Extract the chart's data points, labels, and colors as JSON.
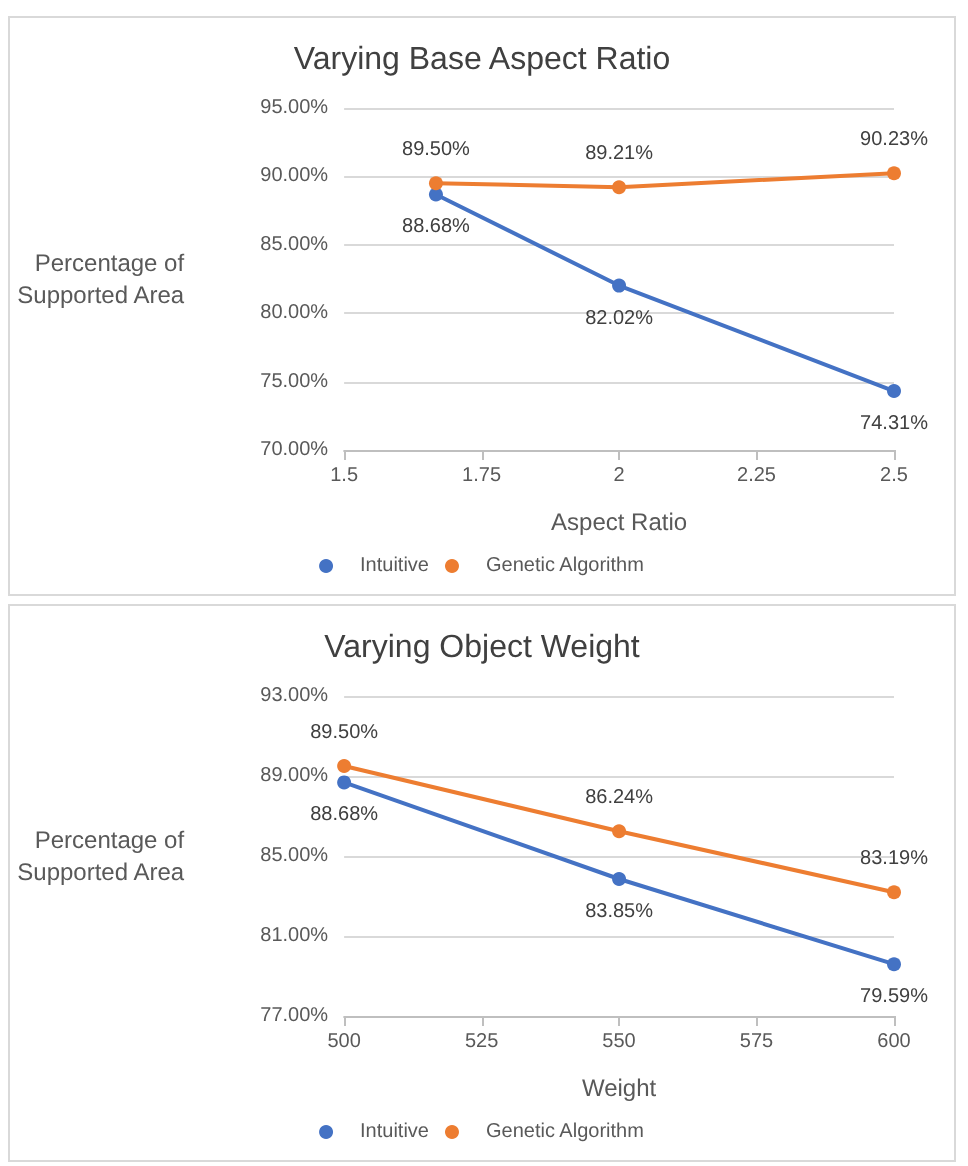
{
  "chart_data": [
    {
      "type": "line",
      "title": "Varying Base Aspect Ratio",
      "xlabel": "Aspect Ratio",
      "ylabel": "Percentage of\nSupported Area",
      "x": [
        1.667,
        2,
        2.5
      ],
      "xlim": [
        1.5,
        2.5
      ],
      "xticks": [
        1.5,
        1.75,
        2,
        2.25,
        2.5
      ],
      "ylim": [
        70,
        95
      ],
      "yticks": [
        {
          "value": 70,
          "label": "70.00%"
        },
        {
          "value": 75,
          "label": "75.00%"
        },
        {
          "value": 80,
          "label": "80.00%"
        },
        {
          "value": 85,
          "label": "85.00%"
        },
        {
          "value": 90,
          "label": "90.00%"
        },
        {
          "value": 95,
          "label": "95.00%"
        }
      ],
      "series": [
        {
          "name": "Intuitive",
          "color": "#4472c4",
          "values": [
            88.68,
            82.02,
            74.31
          ],
          "value_labels": [
            "88.68%",
            "82.02%",
            "74.31%"
          ]
        },
        {
          "name": "Genetic Algorithm",
          "color": "#ed7d31",
          "values": [
            89.5,
            89.21,
            90.23
          ],
          "value_labels": [
            "89.50%",
            "89.21%",
            "90.23%"
          ]
        }
      ],
      "grid": "y",
      "legend": "bottom",
      "marker": "circle"
    },
    {
      "type": "line",
      "title": "Varying Object Weight",
      "xlabel": "Weight",
      "ylabel": "Percentage of\nSupported Area",
      "x": [
        500,
        550,
        600
      ],
      "xlim": [
        500,
        600
      ],
      "xticks": [
        500,
        525,
        550,
        575,
        600
      ],
      "ylim": [
        77,
        93
      ],
      "yticks": [
        {
          "value": 77,
          "label": "77.00%"
        },
        {
          "value": 81,
          "label": "81.00%"
        },
        {
          "value": 85,
          "label": "85.00%"
        },
        {
          "value": 89,
          "label": "89.00%"
        },
        {
          "value": 93,
          "label": "93.00%"
        }
      ],
      "series": [
        {
          "name": "Intuitive",
          "color": "#4472c4",
          "values": [
            88.68,
            83.85,
            79.59
          ],
          "value_labels": [
            "88.68%",
            "83.85%",
            "79.59%"
          ]
        },
        {
          "name": "Genetic Algorithm",
          "color": "#ed7d31",
          "values": [
            89.5,
            86.24,
            83.19
          ],
          "value_labels": [
            "89.50%",
            "86.24%",
            "83.19%"
          ]
        }
      ],
      "grid": "y",
      "legend": "bottom",
      "marker": "circle"
    }
  ]
}
